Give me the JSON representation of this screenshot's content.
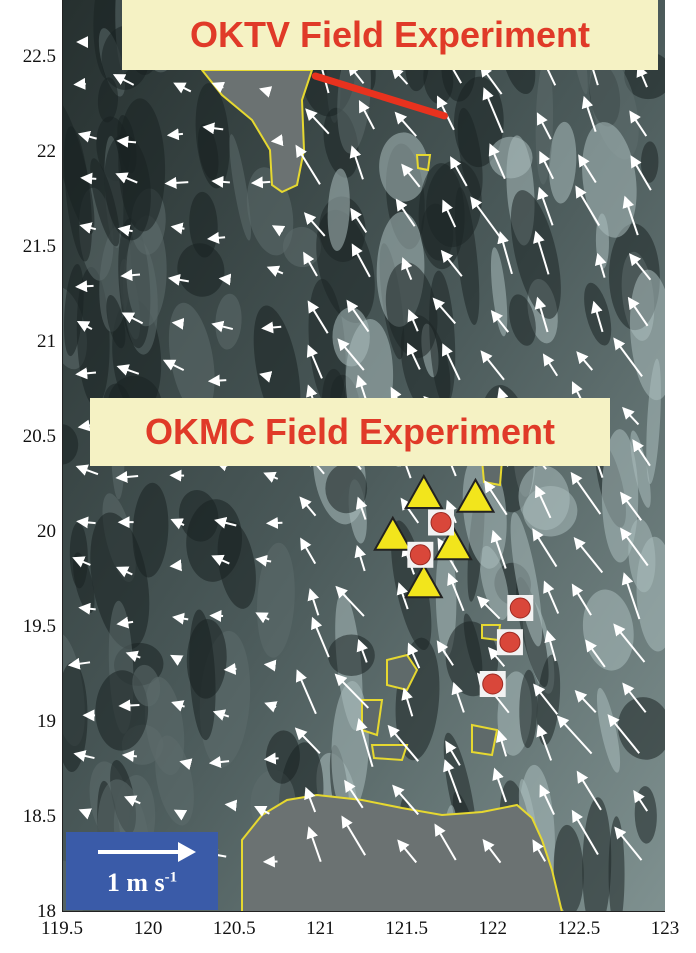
{
  "titles": {
    "oktv": "OKTV Field Experiment",
    "okmc": "OKMC Field Experiment"
  },
  "scale": {
    "label_main": "1 m s",
    "label_exp": "-1"
  },
  "axes": {
    "x_ticks": [
      "119.5",
      "120",
      "120.5",
      "121",
      "121.5",
      "122",
      "122.5",
      "123"
    ],
    "y_ticks": [
      "22.5",
      "22",
      "21.5",
      "21",
      "20.5",
      "20",
      "19.5",
      "19",
      "18.5",
      "18"
    ],
    "xlim": [
      119.5,
      123
    ],
    "ylim": [
      18,
      22.8
    ]
  },
  "colors": {
    "title_text": "#e03a28",
    "title_box": "#f5f2c4",
    "coastline": "#e6d830",
    "transect": "#e8321e",
    "triangle": "#f2e51c",
    "mooring": "#d9473a",
    "scale_box": "#3a5ba8"
  },
  "markers": {
    "triangles": [
      {
        "lon": 121.6,
        "lat": 20.2
      },
      {
        "lon": 121.9,
        "lat": 20.18
      },
      {
        "lon": 121.42,
        "lat": 19.98
      },
      {
        "lon": 121.77,
        "lat": 19.93
      },
      {
        "lon": 121.6,
        "lat": 19.73
      }
    ],
    "moorings": [
      {
        "lon": 121.7,
        "lat": 20.05
      },
      {
        "lon": 121.58,
        "lat": 19.88
      },
      {
        "lon": 122.16,
        "lat": 19.6
      },
      {
        "lon": 122.1,
        "lat": 19.42
      },
      {
        "lon": 122.0,
        "lat": 19.2
      }
    ]
  },
  "transect": {
    "start": {
      "lon": 120.97,
      "lat": 22.4
    },
    "end": {
      "lon": 121.72,
      "lat": 22.19
    }
  }
}
